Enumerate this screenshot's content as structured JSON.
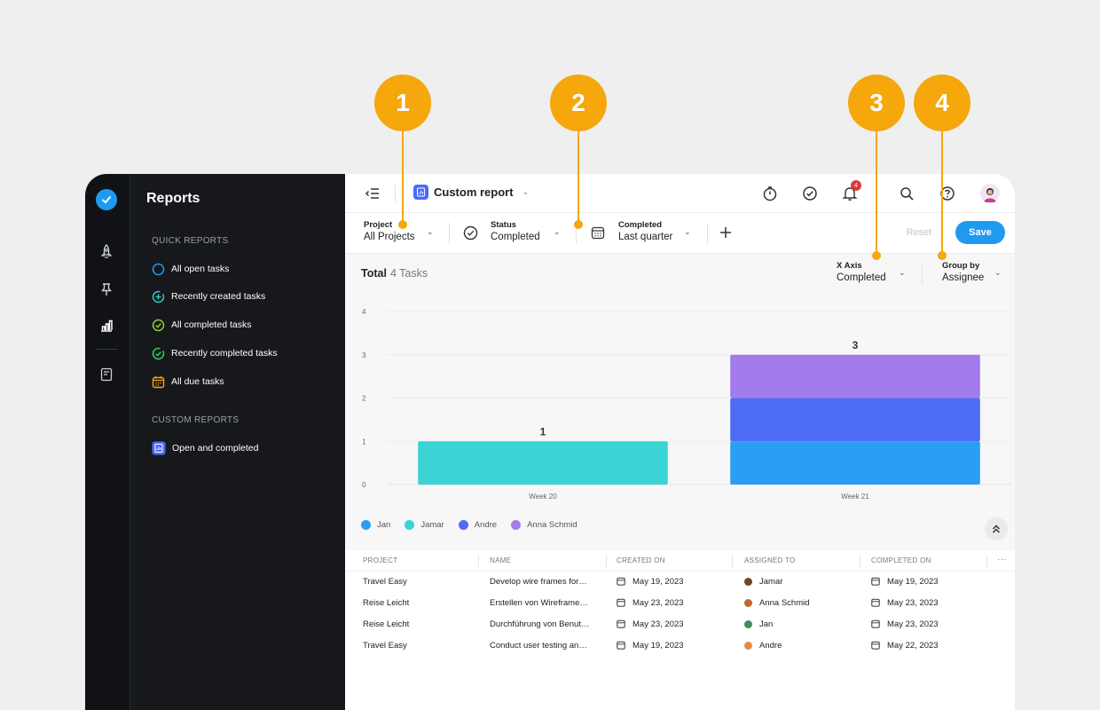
{
  "callouts": [
    "1",
    "2",
    "3",
    "4"
  ],
  "sidebar": {
    "title": "Reports",
    "quick_label": "QUICK REPORTS",
    "quick_items": [
      {
        "label": "All open tasks",
        "icon": "circle-outline-icon",
        "color": "#1e9bf0"
      },
      {
        "label": "Recently created tasks",
        "icon": "plus-circle-icon",
        "color": "#2ec9c9"
      },
      {
        "label": "All completed tasks",
        "icon": "check-circle-icon",
        "color": "#8bd23b"
      },
      {
        "label": "Recently completed tasks",
        "icon": "refresh-check-icon",
        "color": "#2ecf6a"
      },
      {
        "label": "All due tasks",
        "icon": "calendar-icon",
        "color": "#f5a70b"
      }
    ],
    "custom_label": "CUSTOM REPORTS",
    "custom_items": [
      {
        "label": "Open and completed",
        "icon": "report-icon",
        "color": "#4a6cf7"
      }
    ]
  },
  "topbar": {
    "title": "Custom report",
    "notification_count": "4"
  },
  "filters": {
    "project": {
      "label": "Project",
      "value": "All Projects"
    },
    "status": {
      "label": "Status",
      "value": "Completed"
    },
    "completed": {
      "label": "Completed",
      "value": "Last quarter"
    },
    "reset_label": "Reset",
    "save_label": "Save"
  },
  "summary": {
    "total_label": "Total",
    "count": "4 Tasks"
  },
  "controls": {
    "x_axis": {
      "label": "X Axis",
      "value": "Completed"
    },
    "group_by": {
      "label": "Group by",
      "value": "Assignee"
    }
  },
  "chart_data": {
    "type": "bar",
    "stacked": true,
    "categories": [
      "Week 20",
      "Week 21"
    ],
    "series": [
      {
        "name": "Jan",
        "values": [
          0,
          1
        ],
        "color": "#2b9ef4"
      },
      {
        "name": "Jamar",
        "values": [
          1,
          0
        ],
        "color": "#3ad4d4"
      },
      {
        "name": "Andre",
        "values": [
          0,
          1
        ],
        "color": "#4f6cf5"
      },
      {
        "name": "Anna Schmid",
        "values": [
          0,
          1
        ],
        "color": "#a37bed"
      }
    ],
    "totals": [
      "1",
      "3"
    ],
    "yticks": [
      "0",
      "1",
      "2",
      "3",
      "4"
    ],
    "ylim": [
      0,
      4
    ],
    "legend": "bottom-left",
    "grid": true
  },
  "table": {
    "columns": [
      "PROJECT",
      "NAME",
      "CREATED ON",
      "ASSIGNED TO",
      "COMPLETED ON"
    ],
    "more_label": "···",
    "rows": [
      {
        "project": "Travel Easy",
        "name": "Develop wire frames for…",
        "created": "May 19, 2023",
        "assignee": "Jamar",
        "avatar_color": "#6b4a2b",
        "completed": "May 19, 2023"
      },
      {
        "project": "Reise Leicht",
        "name": "Erstellen von Wireframe…",
        "created": "May 23, 2023",
        "assignee": "Anna Schmid",
        "avatar_color": "#c2652f",
        "completed": "May 23, 2023"
      },
      {
        "project": "Reise Leicht",
        "name": "Durchführung von Benut…",
        "created": "May 23, 2023",
        "assignee": "Jan",
        "avatar_color": "#3c8f5a",
        "completed": "May 23, 2023"
      },
      {
        "project": "Travel Easy",
        "name": "Conduct user testing an…",
        "created": "May 19, 2023",
        "assignee": "Andre",
        "avatar_color": "#e08a4a",
        "completed": "May 22, 2023"
      }
    ]
  }
}
